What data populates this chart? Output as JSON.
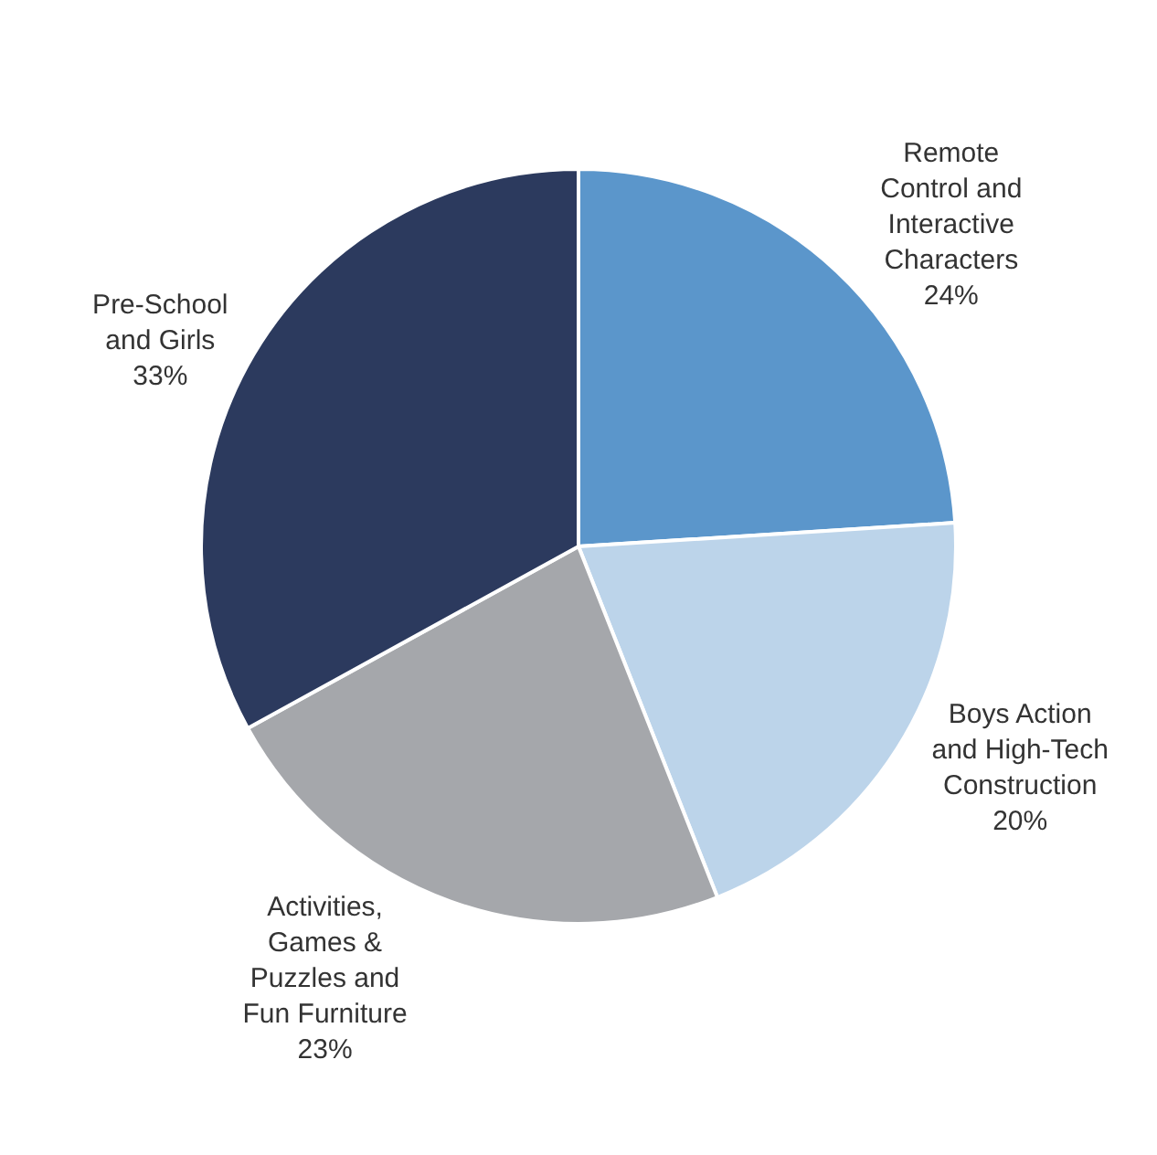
{
  "chart_data": {
    "type": "pie",
    "categories": [
      "Remote Control and Interactive Characters",
      "Boys Action and High-Tech Construction",
      "Activities, Games & Puzzles and Fun Furniture",
      "Pre-School and Girls"
    ],
    "values": [
      24,
      20,
      23,
      33
    ],
    "value_labels": [
      "24%",
      "20%",
      "23%",
      "33%"
    ],
    "colors": [
      "#5b96cb",
      "#bcd4ea",
      "#a5a7ab",
      "#2c3a5e"
    ],
    "legend": false
  }
}
